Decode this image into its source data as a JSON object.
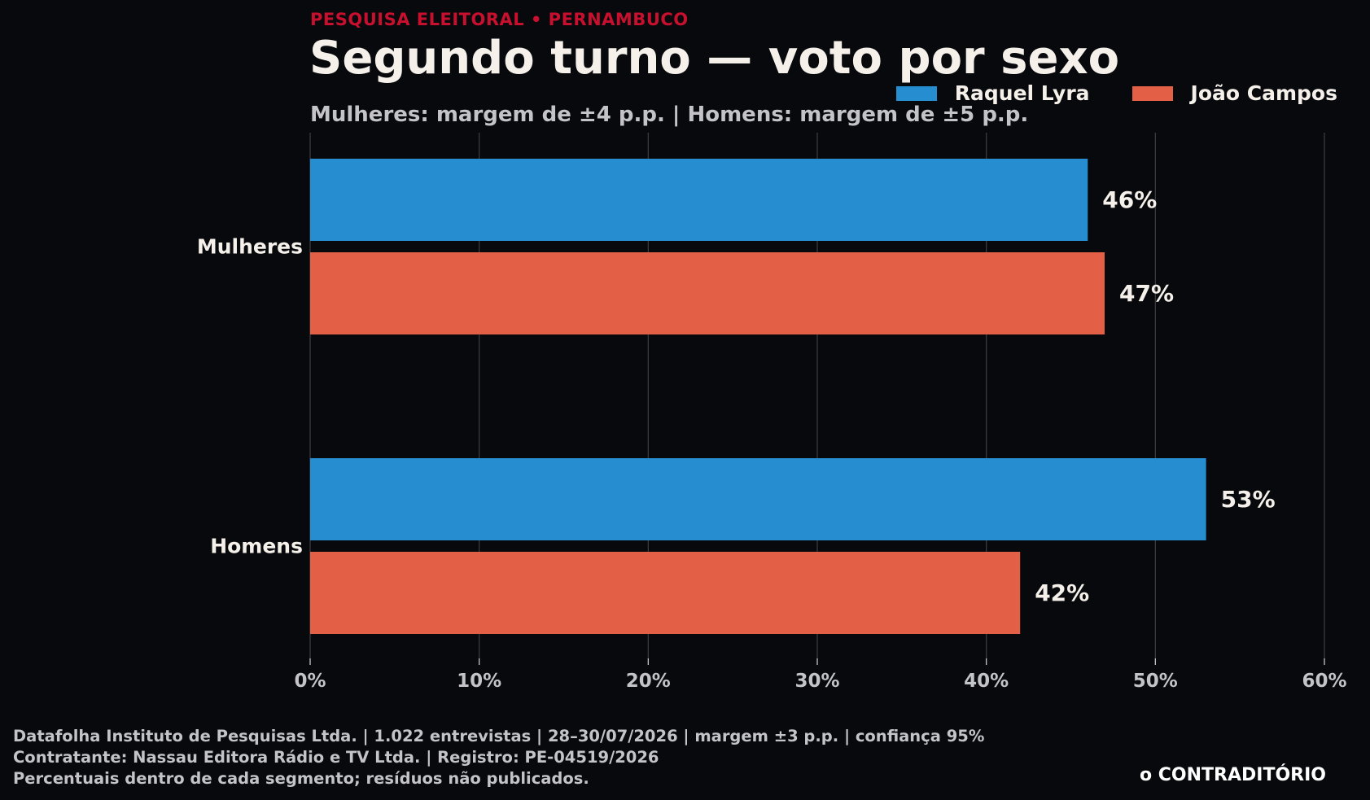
{
  "header": {
    "kicker": "PESQUISA ELEITORAL • PERNAMBUCO",
    "title": "Segundo turno — voto por sexo",
    "subtitle": "Mulheres: margem de ±4 p.p. | Homens: margem de ±5 p.p."
  },
  "colors": {
    "accent": "#c8102e",
    "series_1": "#258dd0",
    "series_2": "#e35f45",
    "background": "#08090d",
    "grid": "#3a3b40"
  },
  "chart_data": {
    "type": "bar",
    "orientation": "horizontal",
    "categories": [
      "Mulheres",
      "Homens"
    ],
    "series": [
      {
        "name": "Raquel Lyra",
        "values": [
          46,
          53
        ]
      },
      {
        "name": "João Campos",
        "values": [
          47,
          42
        ]
      }
    ],
    "value_labels": [
      [
        "46%",
        "53%"
      ],
      [
        "47%",
        "42%"
      ]
    ],
    "xlim": [
      0,
      60
    ],
    "x_ticks": [
      0,
      10,
      20,
      30,
      40,
      50,
      60
    ],
    "x_tick_labels": [
      "0%",
      "10%",
      "20%",
      "30%",
      "40%",
      "50%",
      "60%"
    ],
    "grid": "vertical",
    "legend_position": "top-right"
  },
  "footer": {
    "lines": [
      "Datafolha Instituto de Pesquisas Ltda. | 1.022 entrevistas | 28–30/07/2026 | margem ±3 p.p. | confiança 95%",
      "Contratante: Nassau Editora Rádio e TV Ltda. | Registro: PE-04519/2026",
      "Percentuais dentro de cada segmento; resíduos não publicados."
    ],
    "brand": "o CONTRADITÓRIO"
  }
}
